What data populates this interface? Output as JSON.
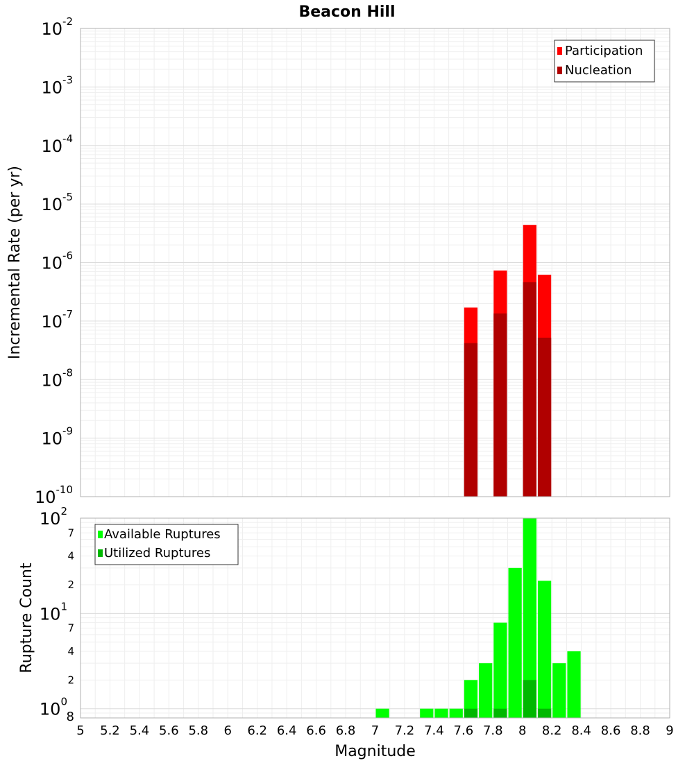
{
  "chart_data": [
    {
      "type": "bar",
      "title": "Beacon Hill",
      "xlabel": "",
      "ylabel": "Incremental Rate (per yr)",
      "y_scale": "log",
      "ylim": [
        1e-10,
        0.01
      ],
      "xlim": [
        5,
        9
      ],
      "bar_width": 0.1,
      "grid": true,
      "legend_position": "top-right",
      "y_tick_exponents": [
        "-10",
        "-9",
        "-8",
        "-7",
        "-6",
        "-5",
        "-4",
        "-3",
        "-2"
      ],
      "series": [
        {
          "name": "Participation",
          "color": "#ff0000",
          "x": [
            7.65,
            7.85,
            8.05,
            8.15
          ],
          "values": [
            1.7e-07,
            7.3e-07,
            4.4e-06,
            6.2e-07
          ]
        },
        {
          "name": "Nucleation",
          "color": "#b00000",
          "x": [
            7.65,
            7.85,
            8.05,
            8.15
          ],
          "values": [
            4.2e-08,
            1.35e-07,
            4.6e-07,
            5.2e-08
          ]
        }
      ]
    },
    {
      "type": "bar",
      "title": "",
      "xlabel": "Magnitude",
      "ylabel": "Rupture Count",
      "y_scale": "log",
      "ylim": [
        0.8,
        100
      ],
      "xlim": [
        5,
        9
      ],
      "bar_width": 0.1,
      "grid": true,
      "legend_position": "top-left",
      "y_major_ticks": [
        {
          "value": 1,
          "base": "10",
          "exp": "0"
        },
        {
          "value": 10,
          "base": "10",
          "exp": "1"
        },
        {
          "value": 100,
          "base": "10",
          "exp": "2"
        }
      ],
      "y_minor_ticks": [
        {
          "value": 0.8,
          "label": "8"
        },
        {
          "value": 2,
          "label": "2"
        },
        {
          "value": 4,
          "label": "4"
        },
        {
          "value": 7,
          "label": "7"
        },
        {
          "value": 20,
          "label": "2"
        },
        {
          "value": 40,
          "label": "4"
        },
        {
          "value": 70,
          "label": "7"
        }
      ],
      "x_ticks": [
        "5",
        "5.2",
        "5.4",
        "5.6",
        "5.8",
        "6",
        "6.2",
        "6.4",
        "6.6",
        "6.8",
        "7",
        "7.2",
        "7.4",
        "7.6",
        "7.8",
        "8",
        "8.2",
        "8.4",
        "8.6",
        "8.8",
        "9"
      ],
      "series": [
        {
          "name": "Available Ruptures",
          "color": "#00ff00",
          "x": [
            7.05,
            7.35,
            7.45,
            7.55,
            7.65,
            7.75,
            7.85,
            7.95,
            8.05,
            8.15,
            8.25,
            8.35
          ],
          "values": [
            1,
            1,
            1,
            1,
            2,
            3,
            8,
            30,
            100,
            22,
            3,
            4
          ]
        },
        {
          "name": "Utilized Ruptures",
          "color": "#00b800",
          "x": [
            7.65,
            7.85,
            8.05,
            8.15
          ],
          "values": [
            1,
            1,
            2,
            1
          ]
        }
      ]
    }
  ]
}
